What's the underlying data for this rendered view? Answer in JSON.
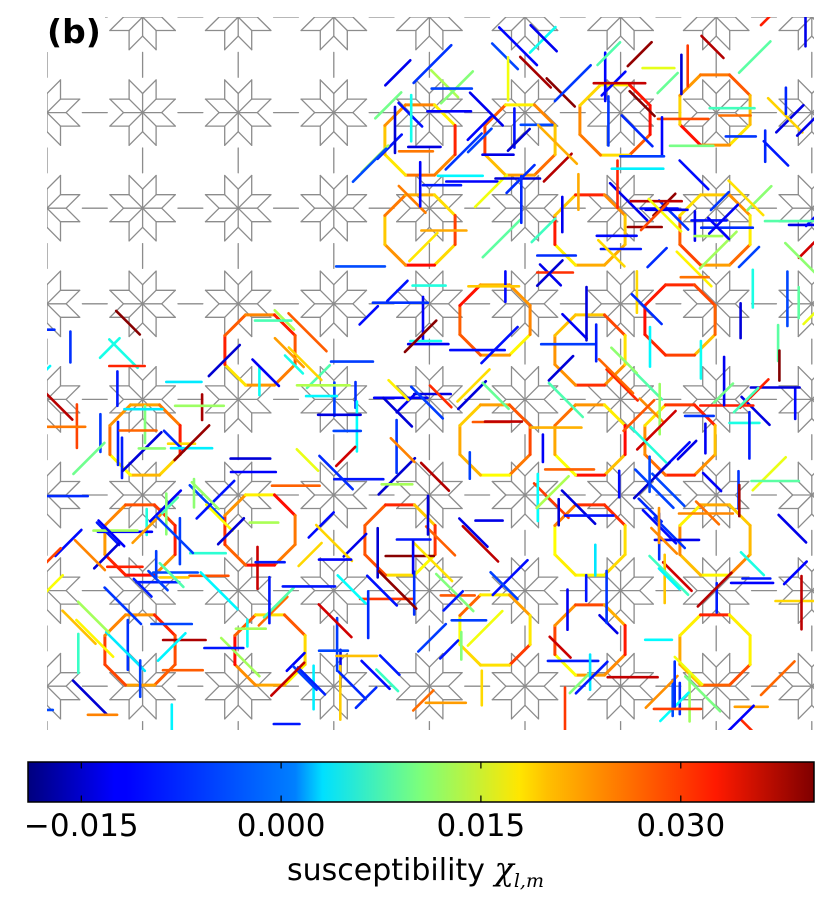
{
  "panel_label": "(b)",
  "colorbar": {
    "title_text": "susceptibility ",
    "title_symbol": "χ",
    "title_subscript": "l,m",
    "range": [
      -0.019,
      0.04
    ],
    "tick_values": [
      -0.015,
      0.0,
      0.015,
      0.03
    ],
    "tick_labels": [
      "−0.015",
      "0.000",
      "0.015",
      "0.030"
    ],
    "colormap": "jet"
  },
  "colors": {
    "tiling_edge": "#8c8c8c",
    "background": "#ffffff"
  }
}
